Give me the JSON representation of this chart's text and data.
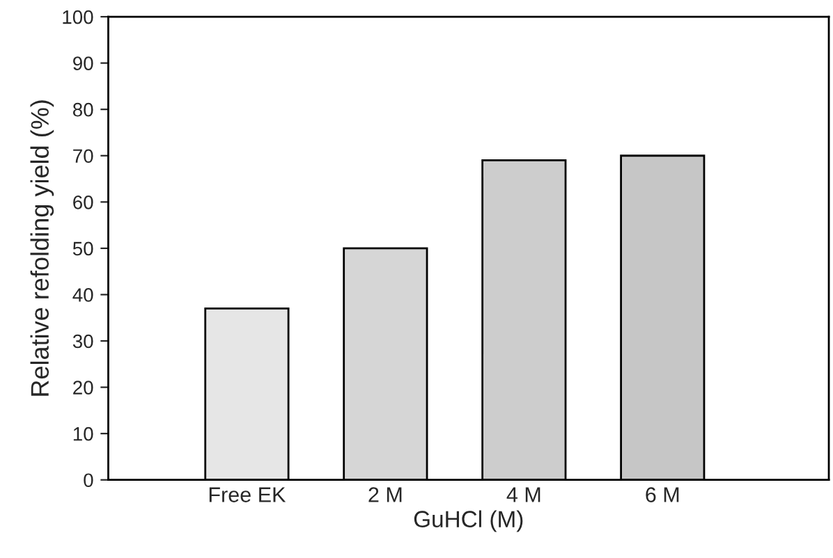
{
  "chart_data": {
    "type": "bar",
    "xlabel": "GuHCl (M)",
    "ylabel": "Relative refolding yield (%)",
    "categories": [
      "Free EK",
      "2 M",
      "4 M",
      "6 M"
    ],
    "values": [
      37,
      50,
      69,
      70
    ],
    "colors": [
      "#e6e6e6",
      "#d6d6d6",
      "#cdcdcd",
      "#c6c6c6"
    ],
    "ylim": [
      0,
      100
    ],
    "yticks": [
      0,
      10,
      20,
      30,
      40,
      50,
      60,
      70,
      80,
      90,
      100
    ],
    "grid": false,
    "legend": false
  }
}
